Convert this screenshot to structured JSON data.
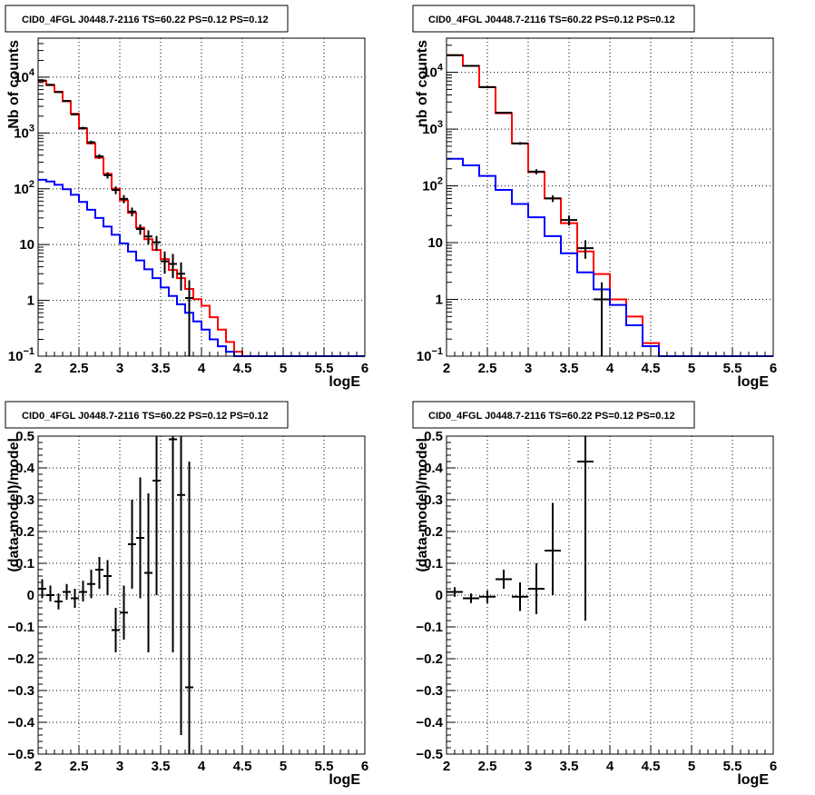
{
  "colors": {
    "data": "#000000",
    "model_total": "#ff0000",
    "model_source": "#0000ff",
    "grid": "#000000",
    "frame": "#000000",
    "background": "#ffffff"
  },
  "chart_data": [
    {
      "id": "counts-left",
      "type": "histogram",
      "title": "CID0_4FGL J0448.7-2116 TS=60.22 PS=0.12 PS=0.12",
      "xlabel": "logE",
      "ylabel": "Nb of counts",
      "xlim": [
        2,
        6
      ],
      "ylim": [
        0.1,
        50000
      ],
      "yscale": "log",
      "grid": true,
      "x_ticks": [
        "2",
        "2.5",
        "3",
        "3.5",
        "4",
        "4.5",
        "5",
        "5.5",
        "6"
      ],
      "y_ticks": [
        {
          "value": 0.1,
          "base": "10",
          "exp": "−1"
        },
        {
          "value": 1,
          "label": "1"
        },
        {
          "value": 10,
          "label": "10"
        },
        {
          "value": 100,
          "base": "10",
          "exp": "2"
        },
        {
          "value": 1000,
          "base": "10",
          "exp": "3"
        },
        {
          "value": 10000,
          "base": "10",
          "exp": "4"
        }
      ],
      "bin_edges": [
        2,
        2.1,
        2.2,
        2.3,
        2.4,
        2.5,
        2.6,
        2.7,
        2.8,
        2.9,
        3,
        3.1,
        3.2,
        3.3,
        3.4,
        3.5,
        3.6,
        3.7,
        3.8,
        3.9,
        4,
        4.1,
        4.2,
        4.3,
        4.4,
        4.5,
        4.6,
        4.7,
        4.8,
        4.9,
        5,
        5.1,
        5.2,
        5.3,
        5.4,
        5.5,
        5.6,
        5.7,
        5.8,
        5.9,
        6
      ],
      "series": [
        {
          "role": "model_total",
          "values": [
            8500,
            7200,
            5500,
            3700,
            2200,
            1200,
            650,
            360,
            185,
            100,
            62,
            37,
            20,
            12.5,
            8,
            5.5,
            3.5,
            2.5,
            1.6,
            1.05,
            0.8,
            0.5,
            0.3,
            0.18,
            0.12,
            0.1,
            0.1,
            0.1,
            0.1,
            0.1,
            0.1,
            0.1,
            0.1,
            0.1,
            0.1,
            0.1,
            0.1,
            0.1,
            0.1,
            0.1
          ]
        },
        {
          "role": "model_source",
          "values": [
            145,
            135,
            118,
            98,
            78,
            58,
            42,
            30,
            21,
            15,
            10.5,
            7.5,
            5.2,
            3.6,
            2.5,
            1.7,
            1.2,
            0.85,
            0.6,
            0.42,
            0.3,
            0.2,
            0.15,
            0.12,
            0.1,
            0.1,
            0.1,
            0.1,
            0.1,
            0.1,
            0.1,
            0.1,
            0.1,
            0.1,
            0.1,
            0.1,
            0.1,
            0.1,
            0.1,
            0.1
          ]
        },
        {
          "role": "data",
          "points": [
            {
              "x": 2.05,
              "y": 8700,
              "lo": 8500,
              "hi": 8900
            },
            {
              "x": 2.15,
              "y": 7300,
              "lo": 7100,
              "hi": 7500
            },
            {
              "x": 2.25,
              "y": 5400,
              "lo": 5250,
              "hi": 5550
            },
            {
              "x": 2.35,
              "y": 3750,
              "lo": 3630,
              "hi": 3870
            },
            {
              "x": 2.45,
              "y": 2150,
              "lo": 2060,
              "hi": 2240
            },
            {
              "x": 2.55,
              "y": 1220,
              "lo": 1150,
              "hi": 1290
            },
            {
              "x": 2.65,
              "y": 680,
              "lo": 630,
              "hi": 730
            },
            {
              "x": 2.75,
              "y": 380,
              "lo": 345,
              "hi": 415
            },
            {
              "x": 2.85,
              "y": 175,
              "lo": 152,
              "hi": 198
            },
            {
              "x": 2.95,
              "y": 95,
              "lo": 80,
              "hi": 110
            },
            {
              "x": 3.05,
              "y": 66,
              "lo": 55,
              "hi": 77
            },
            {
              "x": 3.15,
              "y": 39,
              "lo": 32,
              "hi": 46
            },
            {
              "x": 3.25,
              "y": 19,
              "lo": 15,
              "hi": 23
            },
            {
              "x": 3.35,
              "y": 14,
              "lo": 10,
              "hi": 18
            },
            {
              "x": 3.45,
              "y": 11,
              "lo": 7.7,
              "hi": 14.3
            },
            {
              "x": 3.55,
              "y": 5,
              "lo": 3,
              "hi": 7.5
            },
            {
              "x": 3.65,
              "y": 4.5,
              "lo": 2.5,
              "hi": 6.8
            },
            {
              "x": 3.75,
              "y": 3,
              "lo": 1.5,
              "hi": 4.8
            },
            {
              "x": 3.85,
              "y": 1.1,
              "lo": 0.1,
              "hi": 2.3
            }
          ]
        }
      ]
    },
    {
      "id": "counts-right",
      "type": "histogram",
      "title": "CID0_4FGL J0448.7-2116 TS=60.22 PS=0.12 PS=0.12",
      "xlabel": "logE",
      "ylabel": "nb of counts",
      "xlim": [
        2,
        6
      ],
      "ylim": [
        0.1,
        40000
      ],
      "yscale": "log",
      "grid": true,
      "x_ticks": [
        "2",
        "2.5",
        "3",
        "3.5",
        "4",
        "4.5",
        "5",
        "5.5",
        "6"
      ],
      "y_ticks": [
        {
          "value": 0.1,
          "base": "10",
          "exp": "−1"
        },
        {
          "value": 1,
          "label": "1"
        },
        {
          "value": 10,
          "label": "10"
        },
        {
          "value": 100,
          "base": "10",
          "exp": "2"
        },
        {
          "value": 1000,
          "base": "10",
          "exp": "3"
        },
        {
          "value": 10000,
          "base": "10",
          "exp": "4"
        }
      ],
      "bin_edges": [
        2,
        2.2,
        2.4,
        2.6,
        2.8,
        3,
        3.2,
        3.4,
        3.6,
        3.8,
        4,
        4.2,
        4.4,
        4.6,
        4.8,
        5,
        5.2,
        5.4,
        5.6,
        5.8,
        6
      ],
      "series": [
        {
          "role": "model_total",
          "values": [
            20000,
            13000,
            5500,
            1900,
            560,
            175,
            60,
            22,
            7,
            2.8,
            1,
            0.5,
            0.17,
            0.1,
            0.1,
            0.1,
            0.1,
            0.1,
            0.1,
            0.1
          ]
        },
        {
          "role": "model_source",
          "values": [
            300,
            230,
            150,
            85,
            48,
            28,
            13,
            6.5,
            3,
            1.5,
            0.8,
            0.35,
            0.15,
            0.1,
            0.1,
            0.1,
            0.1,
            0.1,
            0.1,
            0.1
          ]
        },
        {
          "role": "data",
          "points": [
            {
              "x": 2.1,
              "y": 20000,
              "lo": 19800,
              "hi": 20200
            },
            {
              "x": 2.3,
              "y": 13000,
              "lo": 12850,
              "hi": 13150
            },
            {
              "x": 2.5,
              "y": 5500,
              "lo": 5400,
              "hi": 5600
            },
            {
              "x": 2.7,
              "y": 1950,
              "lo": 1890,
              "hi": 2010
            },
            {
              "x": 2.9,
              "y": 560,
              "lo": 530,
              "hi": 590
            },
            {
              "x": 3.1,
              "y": 178,
              "lo": 160,
              "hi": 196
            },
            {
              "x": 3.3,
              "y": 60,
              "lo": 52,
              "hi": 68
            },
            {
              "x": 3.5,
              "y": 25,
              "lo": 20,
              "hi": 30
            },
            {
              "x": 3.7,
              "y": 8,
              "lo": 5.2,
              "hi": 11
            },
            {
              "x": 3.9,
              "y": 1,
              "lo": 0.1,
              "hi": 2
            }
          ]
        }
      ]
    },
    {
      "id": "residual-left",
      "type": "errorbar",
      "title": "CID0_4FGL J0448.7-2116 TS=60.22 PS=0.12 PS=0.12",
      "xlabel": "logE",
      "ylabel": "(data-model)/model",
      "xlim": [
        2,
        6
      ],
      "ylim": [
        -0.5,
        0.5
      ],
      "yscale": "linear",
      "grid": true,
      "bin_width": 0.1,
      "x_ticks": [
        "2",
        "2.5",
        "3",
        "3.5",
        "4",
        "4.5",
        "5",
        "5.5",
        "6"
      ],
      "y_ticks": [
        "−0.5",
        "−0.4",
        "−0.3",
        "−0.2",
        "−0.1",
        "0",
        "0.1",
        "0.2",
        "0.3",
        "0.4",
        "0.5"
      ],
      "points": [
        {
          "x": 2.05,
          "y": 0.02,
          "lo": -0.01,
          "hi": 0.05
        },
        {
          "x": 2.15,
          "y": 0.0,
          "lo": -0.02,
          "hi": 0.03
        },
        {
          "x": 2.25,
          "y": -0.02,
          "lo": -0.045,
          "hi": 0.005
        },
        {
          "x": 2.35,
          "y": 0.01,
          "lo": -0.015,
          "hi": 0.035
        },
        {
          "x": 2.45,
          "y": -0.01,
          "lo": -0.04,
          "hi": 0.02
        },
        {
          "x": 2.55,
          "y": 0.01,
          "lo": -0.02,
          "hi": 0.045
        },
        {
          "x": 2.65,
          "y": 0.035,
          "lo": -0.01,
          "hi": 0.08
        },
        {
          "x": 2.75,
          "y": 0.08,
          "lo": 0.02,
          "hi": 0.12
        },
        {
          "x": 2.85,
          "y": 0.06,
          "lo": 0.0,
          "hi": 0.11
        },
        {
          "x": 2.95,
          "y": -0.11,
          "lo": -0.18,
          "hi": -0.04
        },
        {
          "x": 3.05,
          "y": -0.055,
          "lo": -0.14,
          "hi": 0.03
        },
        {
          "x": 3.15,
          "y": 0.16,
          "lo": 0.02,
          "hi": 0.3
        },
        {
          "x": 3.25,
          "y": 0.18,
          "lo": -0.01,
          "hi": 0.37
        },
        {
          "x": 3.35,
          "y": 0.07,
          "lo": -0.18,
          "hi": 0.32
        },
        {
          "x": 3.45,
          "y": 0.36,
          "lo": 0.0,
          "hi": 0.72
        },
        {
          "x": 3.65,
          "y": 0.49,
          "lo": -0.18,
          "hi": 1.15
        },
        {
          "x": 3.75,
          "y": 0.315,
          "lo": -0.44,
          "hi": 1.07
        },
        {
          "x": 3.85,
          "y": -0.29,
          "lo": -1.0,
          "hi": 0.42
        }
      ]
    },
    {
      "id": "residual-right",
      "type": "errorbar",
      "title": "CID0_4FGL J0448.7-2116 TS=60.22 PS=0.12 PS=0.12",
      "xlabel": "logE",
      "ylabel": "(data-model)/model",
      "xlim": [
        2,
        6
      ],
      "ylim": [
        -0.5,
        0.5
      ],
      "yscale": "linear",
      "grid": true,
      "bin_width": 0.2,
      "x_ticks": [
        "2",
        "2.5",
        "3",
        "3.5",
        "4",
        "4.5",
        "5",
        "5.5",
        "6"
      ],
      "y_ticks": [
        "−0.5",
        "−0.4",
        "−0.3",
        "−0.2",
        "−0.1",
        "0",
        "0.1",
        "0.2",
        "0.3",
        "0.4",
        "0.5"
      ],
      "points": [
        {
          "x": 2.1,
          "y": 0.01,
          "lo": -0.005,
          "hi": 0.025
        },
        {
          "x": 2.3,
          "y": -0.01,
          "lo": -0.025,
          "hi": 0.005
        },
        {
          "x": 2.5,
          "y": -0.005,
          "lo": -0.025,
          "hi": 0.015
        },
        {
          "x": 2.7,
          "y": 0.05,
          "lo": 0.02,
          "hi": 0.08
        },
        {
          "x": 2.9,
          "y": -0.005,
          "lo": -0.05,
          "hi": 0.04
        },
        {
          "x": 3.1,
          "y": 0.02,
          "lo": -0.06,
          "hi": 0.1
        },
        {
          "x": 3.3,
          "y": 0.14,
          "lo": 0.0,
          "hi": 0.29
        },
        {
          "x": 3.7,
          "y": 0.42,
          "lo": -0.08,
          "hi": 0.92
        }
      ]
    }
  ]
}
